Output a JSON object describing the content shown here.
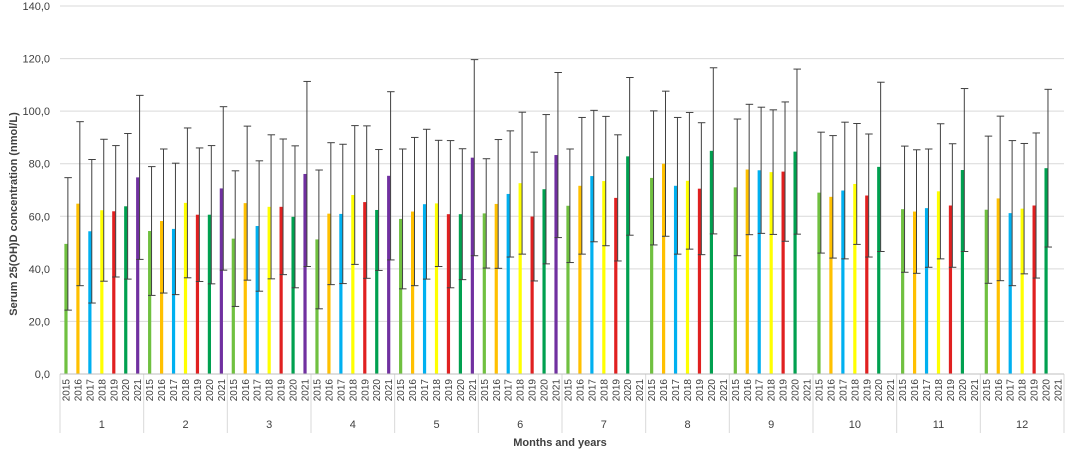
{
  "chart_data": {
    "type": "bar",
    "title": "",
    "xlabel": "Months and years",
    "ylabel": "Serum 25(OH)D concentration (nmol/L)",
    "ylim": [
      0,
      140
    ],
    "yticks": [
      "0,0",
      "20,0",
      "40,0",
      "60,0",
      "80,0",
      "100,0",
      "120,0",
      "140,0"
    ],
    "grid": true,
    "legend": "none",
    "years": [
      "2015",
      "2016",
      "2017",
      "2018",
      "2019",
      "2020",
      "2021"
    ],
    "year_colors": [
      "#70c040",
      "#ffc000",
      "#00b0f0",
      "#ffff00",
      "#e02020",
      "#00a050",
      "#7030a0"
    ],
    "months": [
      {
        "label": "1",
        "values": [
          49.5,
          64.8,
          54.3,
          62.3,
          61.9,
          63.8,
          74.8
        ],
        "errors": [
          25.2,
          31.2,
          27.3,
          27.0,
          25.0,
          27.7,
          31.2
        ]
      },
      {
        "label": "2",
        "values": [
          54.4,
          58.2,
          55.2,
          65.1,
          60.6,
          60.6,
          70.6
        ],
        "errors": [
          24.5,
          27.4,
          25.0,
          28.5,
          25.4,
          26.3,
          31.1
        ]
      },
      {
        "label": "3",
        "values": [
          51.5,
          65.0,
          56.3,
          63.6,
          63.6,
          59.8,
          76.1
        ],
        "errors": [
          25.8,
          29.3,
          24.8,
          27.4,
          25.8,
          27.0,
          35.2
        ]
      },
      {
        "label": "4",
        "values": [
          51.2,
          61.0,
          60.9,
          68.1,
          65.4,
          62.4,
          75.4
        ],
        "errors": [
          26.4,
          27.0,
          26.5,
          26.4,
          29.0,
          23.0,
          32.0
        ]
      },
      {
        "label": "5",
        "values": [
          59.0,
          61.8,
          64.6,
          64.9,
          60.8,
          60.8,
          82.3
        ],
        "errors": [
          26.6,
          28.2,
          28.5,
          24.0,
          28.0,
          24.9,
          37.3
        ]
      },
      {
        "label": "6",
        "values": [
          61.1,
          64.7,
          68.5,
          72.6,
          59.9,
          70.3,
          83.3
        ],
        "errors": [
          20.8,
          24.5,
          24.0,
          27.0,
          24.5,
          28.4,
          31.4
        ]
      },
      {
        "label": "7",
        "values": [
          64.0,
          71.6,
          75.3,
          73.4,
          67.0,
          82.8,
          null
        ],
        "errors": [
          21.6,
          26.0,
          25.0,
          24.6,
          24.0,
          30.0,
          null
        ]
      },
      {
        "label": "8",
        "values": [
          74.6,
          80.0,
          71.6,
          73.5,
          70.5,
          84.9,
          null
        ],
        "errors": [
          25.5,
          27.6,
          26.0,
          26.0,
          25.1,
          31.6,
          null
        ]
      },
      {
        "label": "9",
        "values": [
          71.0,
          77.8,
          77.5,
          76.8,
          77.0,
          84.6,
          null
        ],
        "errors": [
          26.0,
          24.8,
          24.0,
          23.7,
          26.5,
          31.4,
          null
        ]
      },
      {
        "label": "10",
        "values": [
          69.0,
          67.4,
          69.8,
          72.3,
          67.9,
          78.8,
          null
        ],
        "errors": [
          23.0,
          23.3,
          26.0,
          23.0,
          23.4,
          32.2,
          null
        ]
      },
      {
        "label": "11",
        "values": [
          62.7,
          61.8,
          63.1,
          69.5,
          64.1,
          77.6,
          null
        ],
        "errors": [
          24.0,
          23.5,
          22.5,
          25.7,
          23.5,
          31.0,
          null
        ]
      },
      {
        "label": "12",
        "values": [
          62.5,
          66.8,
          61.2,
          62.9,
          64.1,
          78.3,
          null
        ],
        "errors": [
          28.0,
          31.3,
          27.6,
          24.8,
          27.6,
          30.0,
          null
        ]
      }
    ]
  }
}
